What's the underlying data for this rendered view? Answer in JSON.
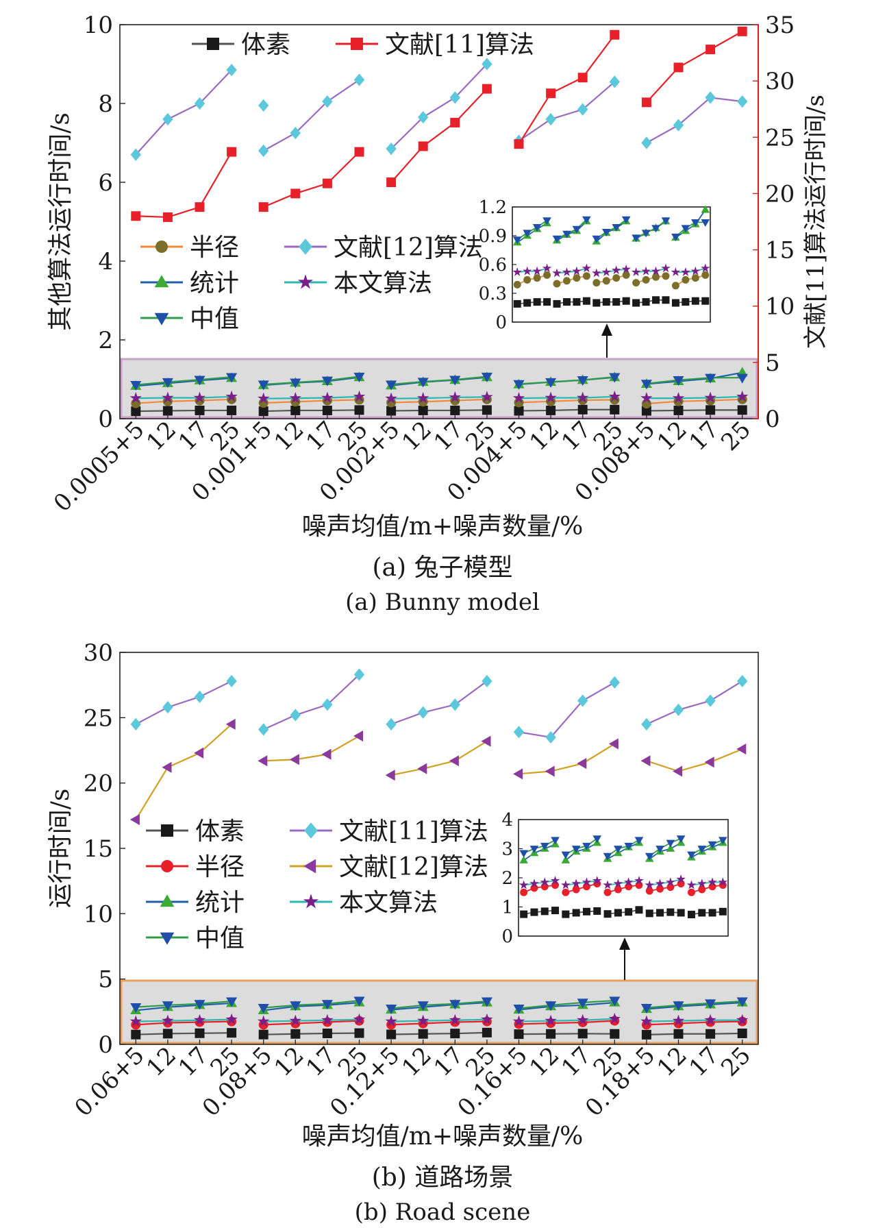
{
  "colors": {
    "voxel": "#1a1a1a",
    "radius_a": "#7a6e2a",
    "radius_a_line": "#f08a3a",
    "radius_b": "#e8202a",
    "stat": "#3aaa35",
    "stat_line": "#1f5fa8",
    "median": "#1f4fa8",
    "median_line": "#2f9a4a",
    "ref12_a": "#5bc8dc",
    "ref12_a_line": "#9a6abf",
    "ref11_b": "#5bc8dc",
    "ref11_b_line": "#9a6abf",
    "ref12_b": "#8a3a9a",
    "ref12_b_line": "#d2a020",
    "ours": "#7a1f8a",
    "ours_line": "#2ab8b0",
    "ref11_a": "#e8202a",
    "right_axis": "#d42020",
    "highlight_a": "#c8a0c8",
    "highlight_b": "#e8a060"
  },
  "chart_data": [
    {
      "type": "line",
      "caption_cn": "(a) 兔子模型",
      "caption_en": "(a) Bunny  model",
      "xlabel": "噪声均值/m+噪声数量/%",
      "ylabel": "其他算法运行时间/s",
      "ylabel_right": "文献[11]算法运行时间/s",
      "ylim": [
        0,
        10
      ],
      "yticks": [
        "0",
        "2",
        "4",
        "6",
        "8",
        "10"
      ],
      "ylim_right": [
        0,
        35
      ],
      "yticks_right": [
        "0",
        "5",
        "10",
        "15",
        "20",
        "25",
        "30",
        "35"
      ],
      "group_labels": [
        "0.0005+5",
        "0.001+5",
        "0.002+5",
        "0.004+5",
        "0.008+5"
      ],
      "sub_labels": [
        "12",
        "17",
        "25"
      ],
      "legend_top": [
        "体素",
        "文献[11]算法"
      ],
      "legend_mid": [
        [
          "半径",
          "文献[12]算法"
        ],
        [
          "统计",
          "本文算法"
        ],
        [
          "中值",
          ""
        ]
      ],
      "series": [
        {
          "name": "体素",
          "axis": "left",
          "marker": "square",
          "values": [
            [
              0.19,
              0.2,
              0.21,
              0.21
            ],
            [
              0.19,
              0.21,
              0.21,
              0.22
            ],
            [
              0.2,
              0.21,
              0.21,
              0.22
            ],
            [
              0.2,
              0.21,
              0.23,
              0.23
            ],
            [
              0.2,
              0.21,
              0.22,
              0.22
            ]
          ]
        },
        {
          "name": "半径",
          "axis": "left",
          "marker": "circle",
          "values": [
            [
              0.39,
              0.44,
              0.46,
              0.49
            ],
            [
              0.4,
              0.43,
              0.46,
              0.48
            ],
            [
              0.41,
              0.43,
              0.46,
              0.49
            ],
            [
              0.41,
              0.44,
              0.47,
              0.48
            ],
            [
              0.38,
              0.44,
              0.46,
              0.49
            ]
          ]
        },
        {
          "name": "统计",
          "axis": "left",
          "marker": "triangle-up",
          "values": [
            [
              0.83,
              0.9,
              0.97,
              1.03
            ],
            [
              0.85,
              0.91,
              0.95,
              1.05
            ],
            [
              0.84,
              0.93,
              0.98,
              1.05
            ],
            [
              0.87,
              0.93,
              0.98,
              1.05
            ],
            [
              0.88,
              0.95,
              1.02,
              1.17
            ]
          ]
        },
        {
          "name": "中值",
          "axis": "left",
          "marker": "triangle-down",
          "values": [
            [
              0.86,
              0.93,
              0.99,
              1.06
            ],
            [
              0.87,
              0.92,
              0.97,
              1.07
            ],
            [
              0.87,
              0.94,
              0.99,
              1.07
            ],
            [
              0.88,
              0.93,
              0.98,
              1.06
            ],
            [
              0.89,
              0.98,
              1.04,
              1.04
            ]
          ]
        },
        {
          "name": "本文算法",
          "axis": "left",
          "marker": "star",
          "values": [
            [
              0.52,
              0.53,
              0.53,
              0.56
            ],
            [
              0.51,
              0.52,
              0.53,
              0.56
            ],
            [
              0.51,
              0.52,
              0.54,
              0.55
            ],
            [
              0.52,
              0.53,
              0.53,
              0.56
            ],
            [
              0.52,
              0.52,
              0.53,
              0.56
            ]
          ]
        },
        {
          "name": "文献[12]算法",
          "axis": "left",
          "marker": "diamond",
          "values": [
            [
              6.7,
              7.6,
              8.0,
              8.85
            ],
            [
              6.8,
              7.25,
              8.05,
              8.6
            ],
            [
              6.85,
              7.65,
              8.15,
              9.0
            ],
            [
              7.05,
              7.6,
              7.85,
              8.55
            ],
            [
              7.0,
              7.45,
              8.15,
              8.05
            ]
          ],
          "extra": [
            {
              "group": 1,
              "index": 0,
              "value": 7.95
            }
          ]
        },
        {
          "name": "文献[11]算法",
          "axis": "right",
          "marker": "square",
          "values": [
            [
              18.0,
              17.9,
              18.8,
              23.7
            ],
            [
              18.8,
              20.0,
              20.9,
              23.7
            ],
            [
              21.0,
              24.2,
              26.3,
              29.3
            ],
            [
              24.4,
              28.9,
              30.3,
              34.1
            ],
            [
              28.1,
              31.2,
              32.8,
              34.4
            ]
          ]
        }
      ],
      "inset": {
        "ylim": [
          0,
          1.2
        ],
        "yticks": [
          "0",
          "0.3",
          "0.6",
          "0.9",
          "1.2"
        ]
      }
    },
    {
      "type": "line",
      "caption_cn": "(b) 道路场景",
      "caption_en": "(b) Road scene",
      "xlabel": "噪声均值/m+噪声数量/%",
      "ylabel": "运行时间/s",
      "ylim": [
        0,
        30
      ],
      "yticks": [
        "0",
        "5",
        "10",
        "15",
        "20",
        "25",
        "30"
      ],
      "group_labels": [
        "0.06+5",
        "0.08+5",
        "0.12+5",
        "0.16+5",
        "0.18+5"
      ],
      "sub_labels": [
        "12",
        "17",
        "25"
      ],
      "legend_mid": [
        [
          "体素",
          "文献[11]算法"
        ],
        [
          "半径",
          "文献[12]算法"
        ],
        [
          "统计",
          "本文算法"
        ],
        [
          "中值",
          ""
        ]
      ],
      "series": [
        {
          "name": "体素",
          "marker": "square",
          "values": [
            [
              0.75,
              0.82,
              0.85,
              0.88
            ],
            [
              0.75,
              0.8,
              0.84,
              0.86
            ],
            [
              0.76,
              0.8,
              0.83,
              0.9
            ],
            [
              0.78,
              0.8,
              0.82,
              0.8
            ],
            [
              0.74,
              0.8,
              0.8,
              0.84
            ]
          ]
        },
        {
          "name": "半径",
          "marker": "circle",
          "values": [
            [
              1.5,
              1.65,
              1.7,
              1.75
            ],
            [
              1.5,
              1.6,
              1.7,
              1.8
            ],
            [
              1.5,
              1.6,
              1.7,
              1.75
            ],
            [
              1.55,
              1.62,
              1.68,
              1.8
            ],
            [
              1.5,
              1.6,
              1.7,
              1.75
            ]
          ]
        },
        {
          "name": "统计",
          "marker": "triangle-up",
          "values": [
            [
              2.6,
              2.85,
              3.0,
              3.15
            ],
            [
              2.6,
              2.9,
              3.0,
              3.2
            ],
            [
              2.65,
              2.85,
              3.05,
              3.2
            ],
            [
              2.65,
              2.9,
              3.0,
              3.2
            ],
            [
              2.7,
              2.9,
              3.05,
              3.2
            ]
          ]
        },
        {
          "name": "中值",
          "marker": "triangle-down",
          "values": [
            [
              2.85,
              3.0,
              3.1,
              3.3
            ],
            [
              2.8,
              3.0,
              3.1,
              3.35
            ],
            [
              2.75,
              3.0,
              3.1,
              3.3
            ],
            [
              2.75,
              3.0,
              3.2,
              3.35
            ],
            [
              2.8,
              3.0,
              3.15,
              3.3
            ]
          ]
        },
        {
          "name": "本文算法",
          "marker": "star",
          "values": [
            [
              1.75,
              1.8,
              1.85,
              1.9
            ],
            [
              1.75,
              1.8,
              1.85,
              1.9
            ],
            [
              1.75,
              1.8,
              1.85,
              1.9
            ],
            [
              1.75,
              1.8,
              1.85,
              1.95
            ],
            [
              1.75,
              1.8,
              1.85,
              1.85
            ]
          ]
        },
        {
          "name": "文献[11]算法",
          "marker": "diamond",
          "values": [
            [
              24.5,
              25.8,
              26.6,
              27.8
            ],
            [
              24.1,
              25.2,
              26.0,
              28.3
            ],
            [
              24.5,
              25.4,
              26.0,
              27.8
            ],
            [
              23.9,
              23.5,
              26.3,
              27.7
            ],
            [
              24.5,
              25.6,
              26.3,
              27.8
            ]
          ]
        },
        {
          "name": "文献[12]算法",
          "marker": "triangle-left",
          "values": [
            [
              17.2,
              21.2,
              22.3,
              24.5
            ],
            [
              21.7,
              21.8,
              22.2,
              23.6
            ],
            [
              20.6,
              21.1,
              21.7,
              23.2
            ],
            [
              20.7,
              20.9,
              21.5,
              23.0
            ],
            [
              21.7,
              20.9,
              21.6,
              22.6
            ]
          ]
        }
      ],
      "inset": {
        "ylim": [
          0,
          4
        ],
        "yticks": [
          "0",
          "1",
          "2",
          "3",
          "4"
        ]
      }
    }
  ]
}
